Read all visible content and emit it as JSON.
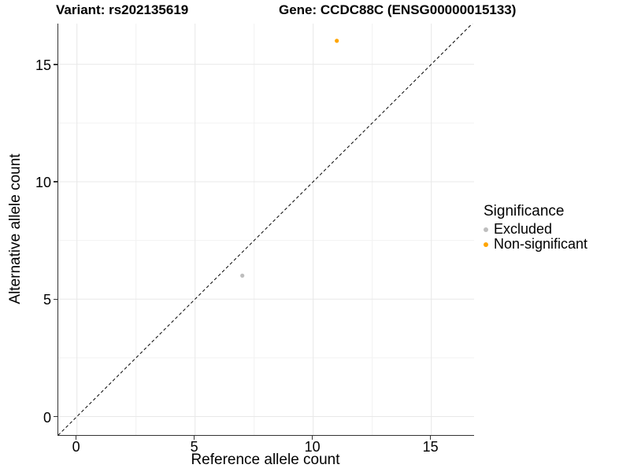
{
  "chart_data": {
    "type": "scatter",
    "title_variant": "Variant: rs202135619",
    "title_gene": "Gene: CCDC88C (ENSG00000015133)",
    "xlabel": "Reference allele count",
    "ylabel": "Alternative allele count",
    "xlim": [
      -0.8,
      16.8
    ],
    "ylim": [
      -0.8,
      16.75
    ],
    "xticks": [
      0,
      5,
      10,
      15
    ],
    "yticks": [
      0,
      5,
      10,
      15
    ],
    "minor_gridlines": [
      2.5,
      7.5,
      12.5
    ],
    "grid": "major and minor gridlines, very light gray, on white panel",
    "identity_line": {
      "equation": "y = x",
      "style": "dashed",
      "color": "#000000"
    },
    "legend": {
      "title": "Significance",
      "position": "right"
    },
    "series": [
      {
        "name": "Excluded",
        "color": "#BEBEBE",
        "points": [
          {
            "x": 7,
            "y": 6
          }
        ]
      },
      {
        "name": "Non-significant",
        "color": "#FFA500",
        "points": [
          {
            "x": 11,
            "y": 16
          }
        ]
      }
    ]
  },
  "colors": {
    "background": "#FFFFFF",
    "text": "#000000",
    "axis_line": "#333333",
    "gridline_major": "#E8E8E8",
    "gridline_minor": "#F2F2F2"
  }
}
